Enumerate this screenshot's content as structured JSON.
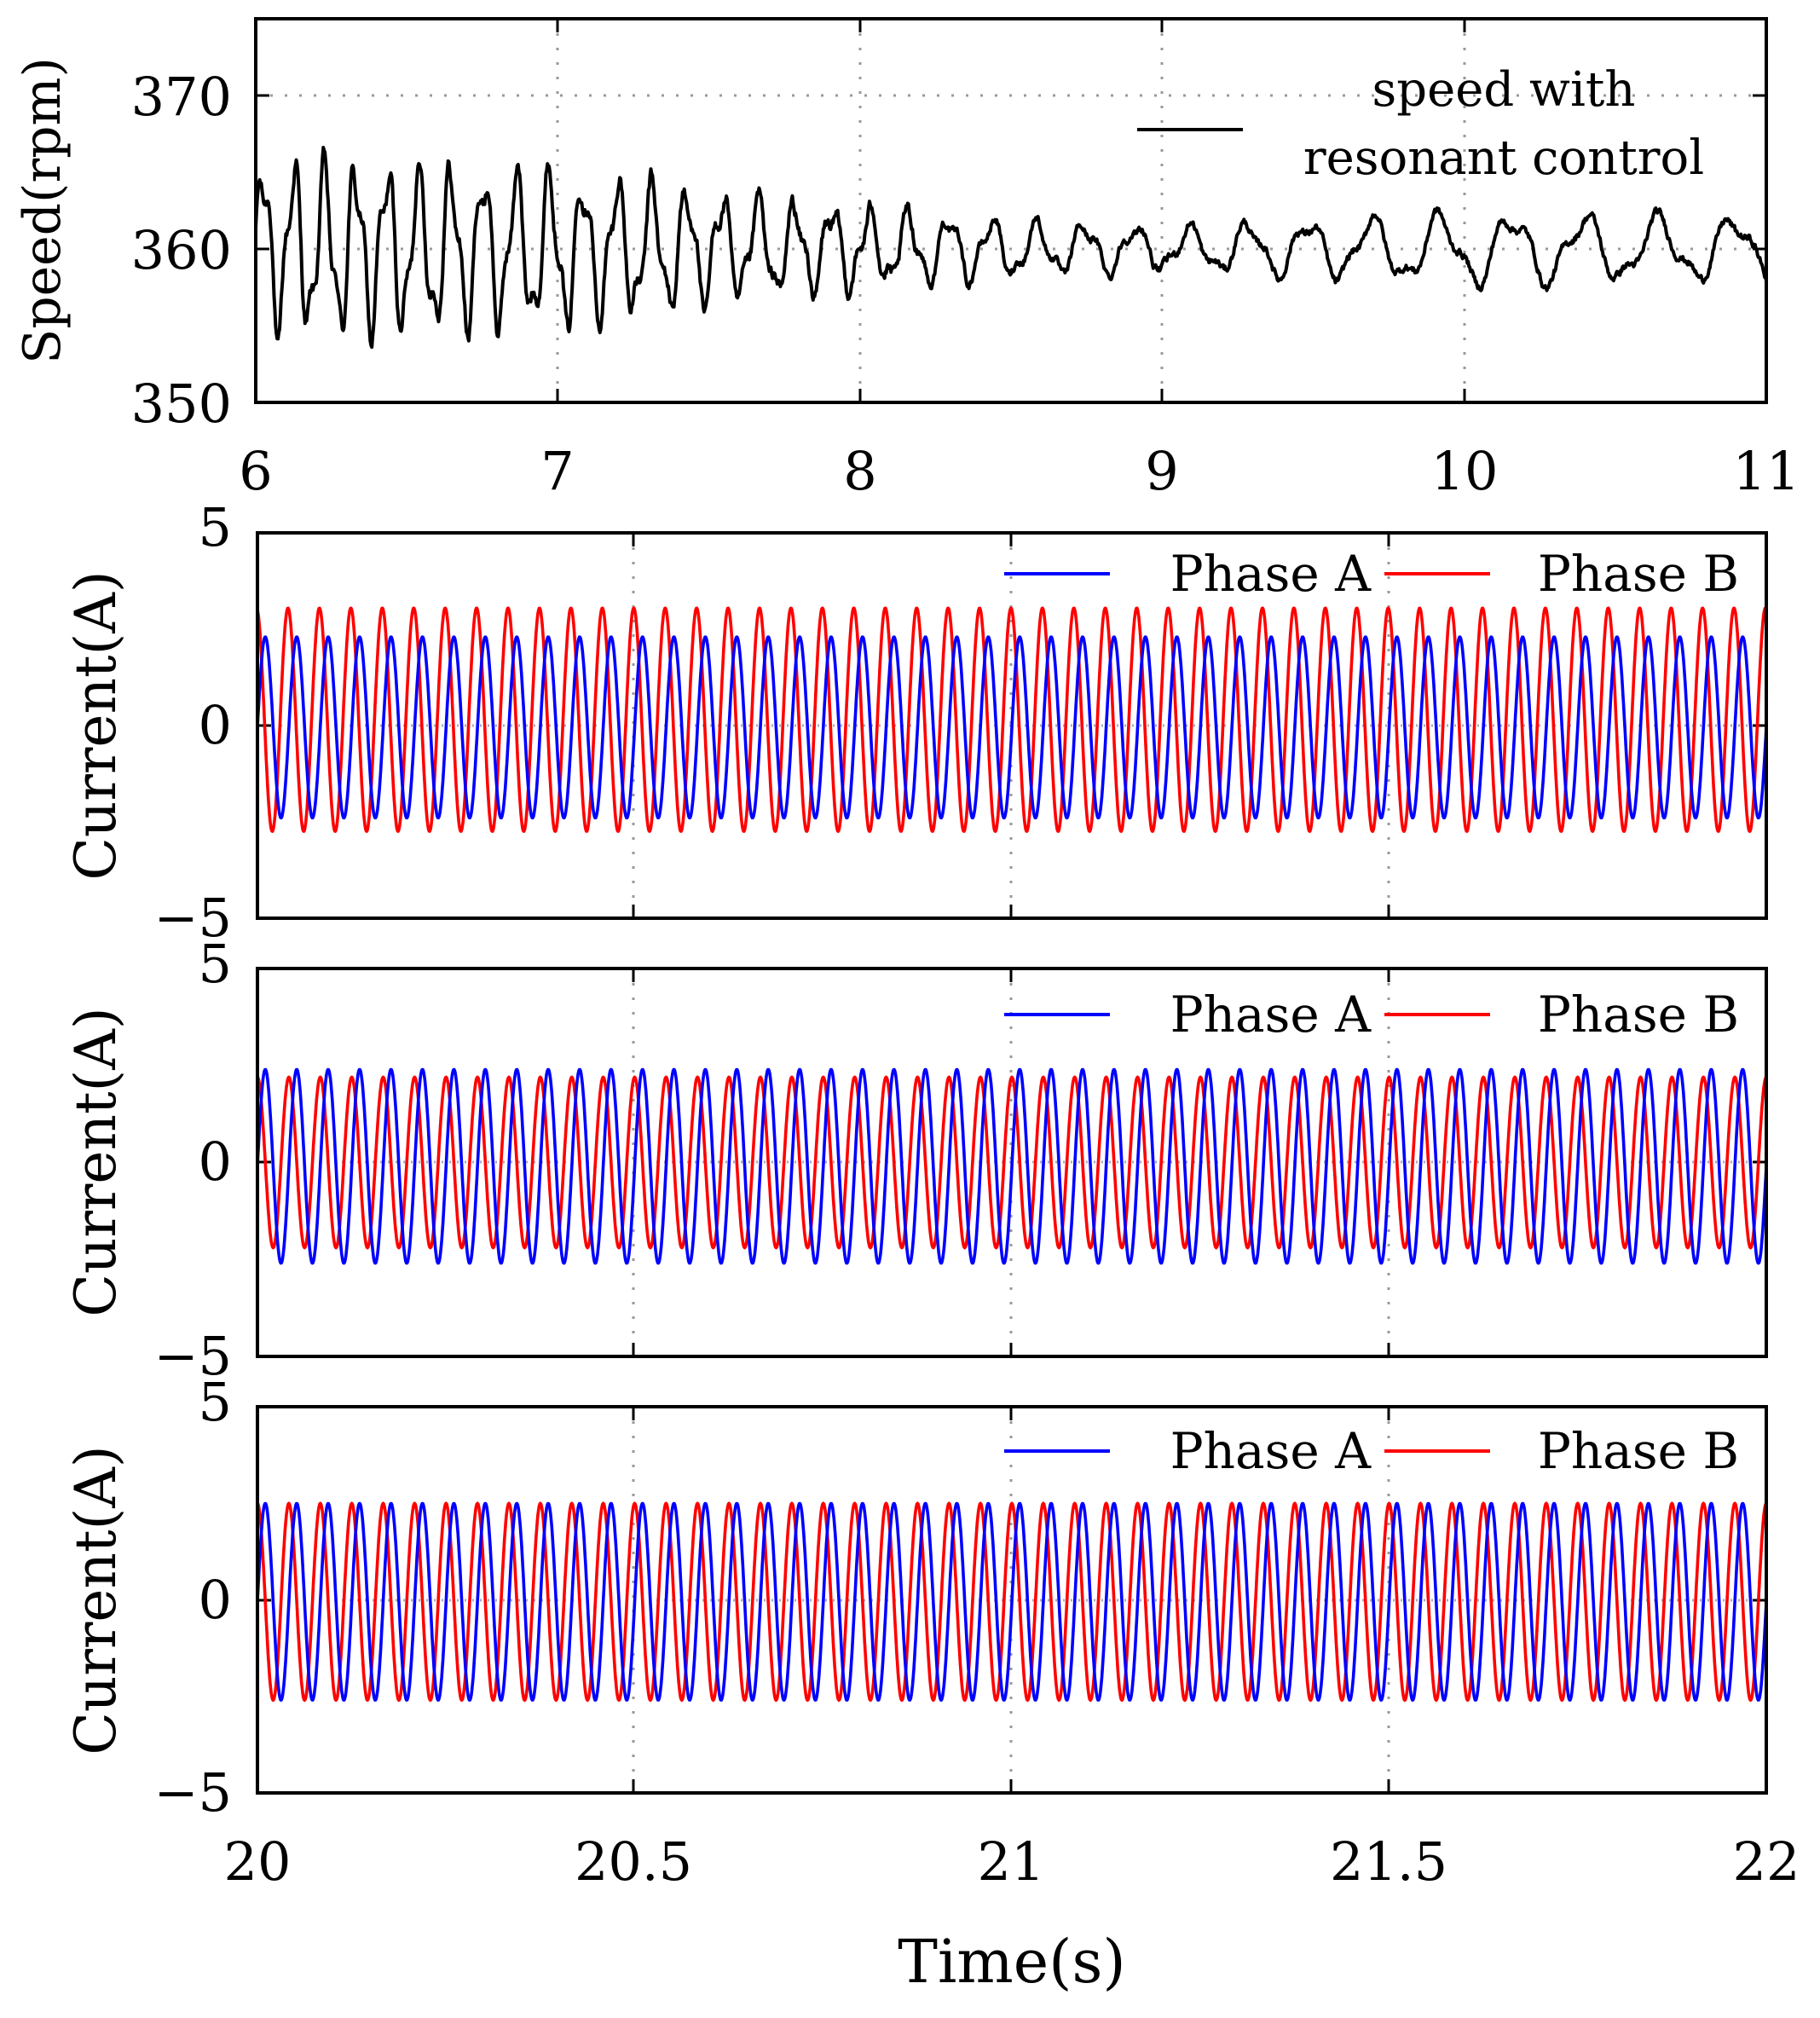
{
  "figure": {
    "xlabel": "Time(s)"
  },
  "chart_data": [
    {
      "type": "line",
      "panel": "speed",
      "ylabel": "Speed(rpm)",
      "xlim": [
        6,
        11
      ],
      "ylim": [
        350,
        375
      ],
      "xticks": [
        6,
        7,
        8,
        9,
        10,
        11
      ],
      "xtick_labels": [
        "6",
        "7",
        "8",
        "9",
        "10",
        "11"
      ],
      "yticks": [
        350,
        360,
        370
      ],
      "ytick_labels": [
        "350",
        "360",
        "370"
      ],
      "grid": true,
      "legend": {
        "position": "top-right",
        "entries": [
          "speed with",
          "resonant control"
        ]
      },
      "series": [
        {
          "name": "speed with resonant control",
          "color": "#000000",
          "mean": 360,
          "oscillation_amplitude": [
            [
              6.0,
              4.8
            ],
            [
              7.0,
              4.3
            ],
            [
              7.8,
              2.5
            ],
            [
              8.5,
              1.6
            ],
            [
              9.0,
              1.2
            ],
            [
              10.0,
              2.0
            ],
            [
              11.0,
              1.7
            ]
          ],
          "oscillation_frequency_hz": [
            [
              6.0,
              10
            ],
            [
              8.0,
              8
            ],
            [
              9.0,
              5.5
            ],
            [
              10.0,
              4.2
            ],
            [
              11.0,
              4.0
            ]
          ],
          "y_range_observed": [
            353,
            365.5
          ]
        }
      ]
    },
    {
      "type": "line",
      "panel": "current-1",
      "ylabel": "Current(A)",
      "xlim": [
        20,
        22
      ],
      "ylim": [
        -5,
        5
      ],
      "xticks": [
        20,
        20.5,
        21,
        21.5,
        22
      ],
      "yticks": [
        -5,
        0,
        5
      ],
      "ytick_labels": [
        "−5",
        "0",
        "5"
      ],
      "grid": true,
      "legend": {
        "position": "top-right",
        "entries": [
          "Phase A",
          "Phase B"
        ]
      },
      "series": [
        {
          "name": "Phase A",
          "color": "#0000ff",
          "frequency_hz": 24,
          "amplitude": 2.35,
          "offset": -0.05,
          "phase_deg": 0
        },
        {
          "name": "Phase B",
          "color": "#ff0000",
          "frequency_hz": 24,
          "amplitude": 2.9,
          "offset": 0.15,
          "phase_deg": 100
        }
      ]
    },
    {
      "type": "line",
      "panel": "current-2",
      "ylabel": "Current(A)",
      "xlim": [
        20,
        22
      ],
      "ylim": [
        -5,
        5
      ],
      "xticks": [
        20,
        20.5,
        21,
        21.5,
        22
      ],
      "yticks": [
        -5,
        0,
        5
      ],
      "ytick_labels": [
        "−5",
        "0",
        "5"
      ],
      "grid": true,
      "legend": {
        "position": "top-right",
        "entries": [
          "Phase A",
          "Phase B"
        ]
      },
      "series": [
        {
          "name": "Phase A",
          "color": "#0000ff",
          "frequency_hz": 24,
          "amplitude": 2.5,
          "offset": -0.1,
          "phase_deg": 0
        },
        {
          "name": "Phase B",
          "color": "#ff0000",
          "frequency_hz": 24,
          "amplitude": 2.2,
          "offset": 0.0,
          "phase_deg": 90
        }
      ]
    },
    {
      "type": "line",
      "panel": "current-3",
      "ylabel": "Current(A)",
      "xlabel": "Time(s)",
      "xlim": [
        20,
        22
      ],
      "ylim": [
        -5,
        5
      ],
      "xticks": [
        20,
        20.5,
        21,
        21.5,
        22
      ],
      "xtick_labels": [
        "20",
        "20.5",
        "21",
        "21.5",
        "22"
      ],
      "yticks": [
        -5,
        0,
        5
      ],
      "ytick_labels": [
        "−5",
        "0",
        "5"
      ],
      "grid": true,
      "legend": {
        "position": "top-right",
        "entries": [
          "Phase A",
          "Phase B"
        ]
      },
      "series": [
        {
          "name": "Phase A",
          "color": "#0000ff",
          "frequency_hz": 24,
          "amplitude": 2.55,
          "offset": -0.05,
          "phase_deg": 0
        },
        {
          "name": "Phase B",
          "color": "#ff0000",
          "frequency_hz": 24,
          "amplitude": 2.55,
          "offset": -0.05,
          "phase_deg": 90
        }
      ]
    }
  ]
}
